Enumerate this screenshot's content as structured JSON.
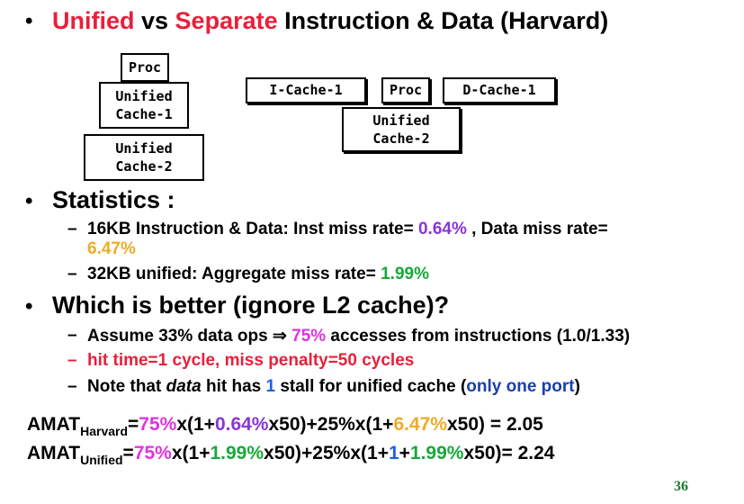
{
  "title": {
    "w1": "Unified",
    "w2": " vs ",
    "w3": "Separate",
    "w4": " Instruction & Data (Harvard)"
  },
  "diagram": {
    "unified": {
      "proc": "Proc",
      "cache1_l1": "Unified",
      "cache1_l2": "Cache-1",
      "cache2_l1": "Unified",
      "cache2_l2": "Cache-2"
    },
    "harvard": {
      "icache": "I-Cache-1",
      "proc": "Proc",
      "dcache": "D-Cache-1",
      "cache2_l1": "Unified",
      "cache2_l2": "Cache-2"
    }
  },
  "statistics": {
    "heading": "Statistics :",
    "line1_a": "16KB Instruction & Data: Inst miss rate= ",
    "line1_b": "0.64%",
    "line1_c": " , Data miss rate=",
    "line1_d": "6.47%",
    "line2_a": "32KB unified: Aggregate miss rate= ",
    "line2_b": "1.99%"
  },
  "better": {
    "heading": "Which is better (ignore L2 cache)?",
    "line1_a": "Assume 33% data ops ",
    "line1_arrow": "⇒",
    "line1_b": " 75%",
    "line1_c": " accesses from instructions (1.0/1.33)",
    "line2": "hit time=1 cycle, miss penalty=50 cycles",
    "line3_a": "Note that ",
    "line3_b": "data",
    "line3_c": " hit has ",
    "line3_d": "1",
    "line3_e": " stall for unified cache (",
    "line3_f": "only one port",
    "line3_g": ")"
  },
  "amat_harvard": {
    "label": "AMAT",
    "sub": "Harvard",
    "eq": "=",
    "p1": "75%",
    "p2": "x(1+",
    "p3": "0.64%",
    "p4": "x50)+25%x(1+",
    "p5": "6.47%",
    "p6": "x50) =  2.05"
  },
  "amat_unified": {
    "label": "AMAT",
    "sub": "Unified",
    "eq": "=",
    "p1": "75%",
    "p2": "x(1+",
    "p3": "1.99%",
    "p4": "x50)+25%x(1+",
    "p5": "1",
    "p6": "+",
    "p7": "1.99%",
    "p8": "x50)= 2.24"
  },
  "page_number": "36",
  "bullet_glyph": "•",
  "dash_glyph": "–"
}
